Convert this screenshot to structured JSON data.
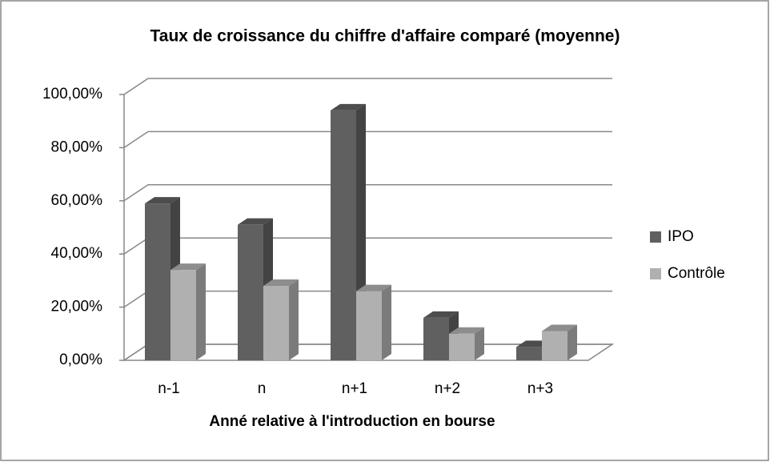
{
  "chart_data": {
    "type": "bar3d",
    "title": "Taux de croissance du chiffre d'affaire comparé (moyenne)",
    "x_label": "Anné relative à l'introduction en bourse",
    "categories": [
      "n-1",
      "n",
      "n+1",
      "n+2",
      "n+3"
    ],
    "series": [
      {
        "name": "IPO",
        "color": "#606060",
        "values": [
          59,
          51,
          94,
          16,
          5
        ]
      },
      {
        "name": "Contrôle",
        "color": "#b0b0b0",
        "values": [
          34,
          28,
          26,
          10,
          11
        ]
      }
    ],
    "ylim": [
      0,
      100
    ],
    "yticks": [
      {
        "value": 0,
        "label": "0,00%"
      },
      {
        "value": 20,
        "label": "20,00%"
      },
      {
        "value": 40,
        "label": "40,00%"
      },
      {
        "value": 60,
        "label": "60,00%"
      },
      {
        "value": 80,
        "label": "80,00%"
      },
      {
        "value": 100,
        "label": "100,00%"
      }
    ],
    "grid": true,
    "legend": "right"
  }
}
